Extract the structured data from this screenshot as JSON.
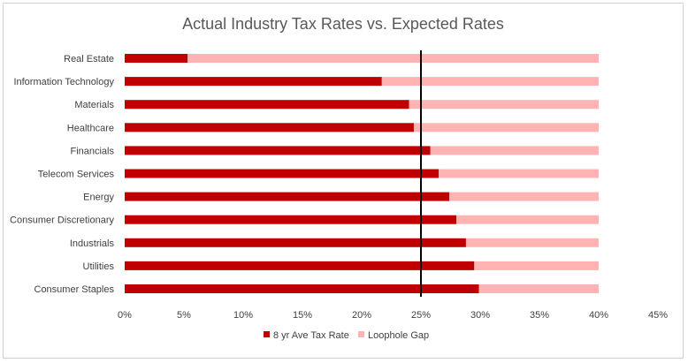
{
  "chart_data": {
    "type": "bar",
    "orientation": "horizontal",
    "stacked": true,
    "title": "Actual Industry Tax Rates vs. Expected  Rates",
    "categories": [
      "Real Estate",
      "Information Technology",
      "Materials",
      "Healthcare",
      "Financials",
      "Telecom Services",
      "Energy",
      "Consumer Discretionary",
      "Industrials",
      "Utilities",
      "Consumer Staples"
    ],
    "series": [
      {
        "name": "8 yr Ave Tax Rate",
        "color": "#c00000",
        "values": [
          5.3,
          21.7,
          24.0,
          24.4,
          25.8,
          26.5,
          27.4,
          28.0,
          28.8,
          29.5,
          29.9
        ]
      },
      {
        "name": "Loophole Gap",
        "color": "#ffb3b3",
        "values": [
          34.7,
          18.3,
          16.0,
          15.6,
          14.2,
          13.5,
          12.6,
          12.0,
          11.2,
          10.5,
          10.1
        ]
      }
    ],
    "reference_line": {
      "value": 25,
      "color": "#000000"
    },
    "xlim": [
      0,
      45
    ],
    "x_ticks": [
      "0%",
      "5%",
      "10%",
      "15%",
      "20%",
      "25%",
      "30%",
      "35%",
      "40%",
      "45%"
    ],
    "grid": false,
    "legend_position": "bottom"
  }
}
